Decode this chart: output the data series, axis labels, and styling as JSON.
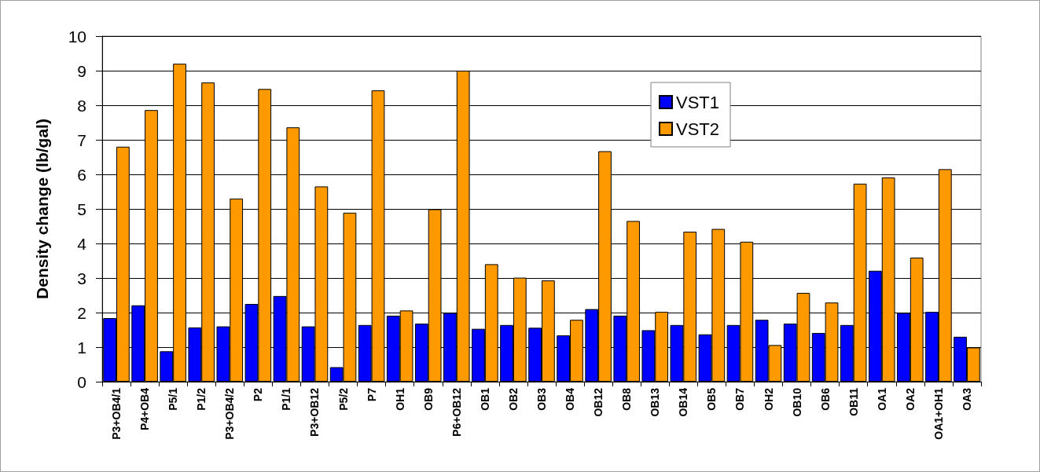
{
  "chart_data": {
    "type": "bar",
    "ylabel": "Density change (lb/gal)",
    "categories": [
      "P3+OB4/1",
      "P4+OB4",
      "P5/1",
      "P1/2",
      "P3+OB4/2",
      "P2",
      "P1/1",
      "P3+OB12",
      "P5/2",
      "P7",
      "OH1",
      "OB9",
      "P6+OB12",
      "OB1",
      "OB2",
      "OB3",
      "OB4",
      "OB12",
      "OB8",
      "OB13",
      "OB14",
      "OB5",
      "OB7",
      "OH2",
      "OB10",
      "OB6",
      "OB11",
      "OA1",
      "OA2",
      "OA1+OH1",
      "OA3"
    ],
    "series": [
      {
        "name": "VST1",
        "color": "#0000ff",
        "values": [
          1.84,
          2.21,
          0.88,
          1.57,
          1.6,
          2.25,
          2.48,
          1.6,
          0.42,
          1.64,
          1.91,
          1.68,
          1.99,
          1.53,
          1.64,
          1.56,
          1.34,
          2.1,
          1.91,
          1.49,
          1.64,
          1.37,
          1.64,
          1.79,
          1.68,
          1.41,
          1.64,
          3.21,
          1.99,
          2.02,
          1.3
        ]
      },
      {
        "name": "VST2",
        "color": "#ff9900",
        "values": [
          6.8,
          7.86,
          9.2,
          8.66,
          5.3,
          8.47,
          7.36,
          5.65,
          4.89,
          8.43,
          2.06,
          4.99,
          9.0,
          3.4,
          3.01,
          2.93,
          1.79,
          6.67,
          4.65,
          2.02,
          4.34,
          4.42,
          4.05,
          1.06,
          2.57,
          2.29,
          5.73,
          5.91,
          3.59,
          6.15,
          0.99
        ]
      }
    ],
    "ylim": [
      0,
      10
    ],
    "yticks": [
      0,
      1,
      2,
      3,
      4,
      5,
      6,
      7,
      8,
      9,
      10
    ],
    "grid": "y",
    "legend": "top right"
  }
}
